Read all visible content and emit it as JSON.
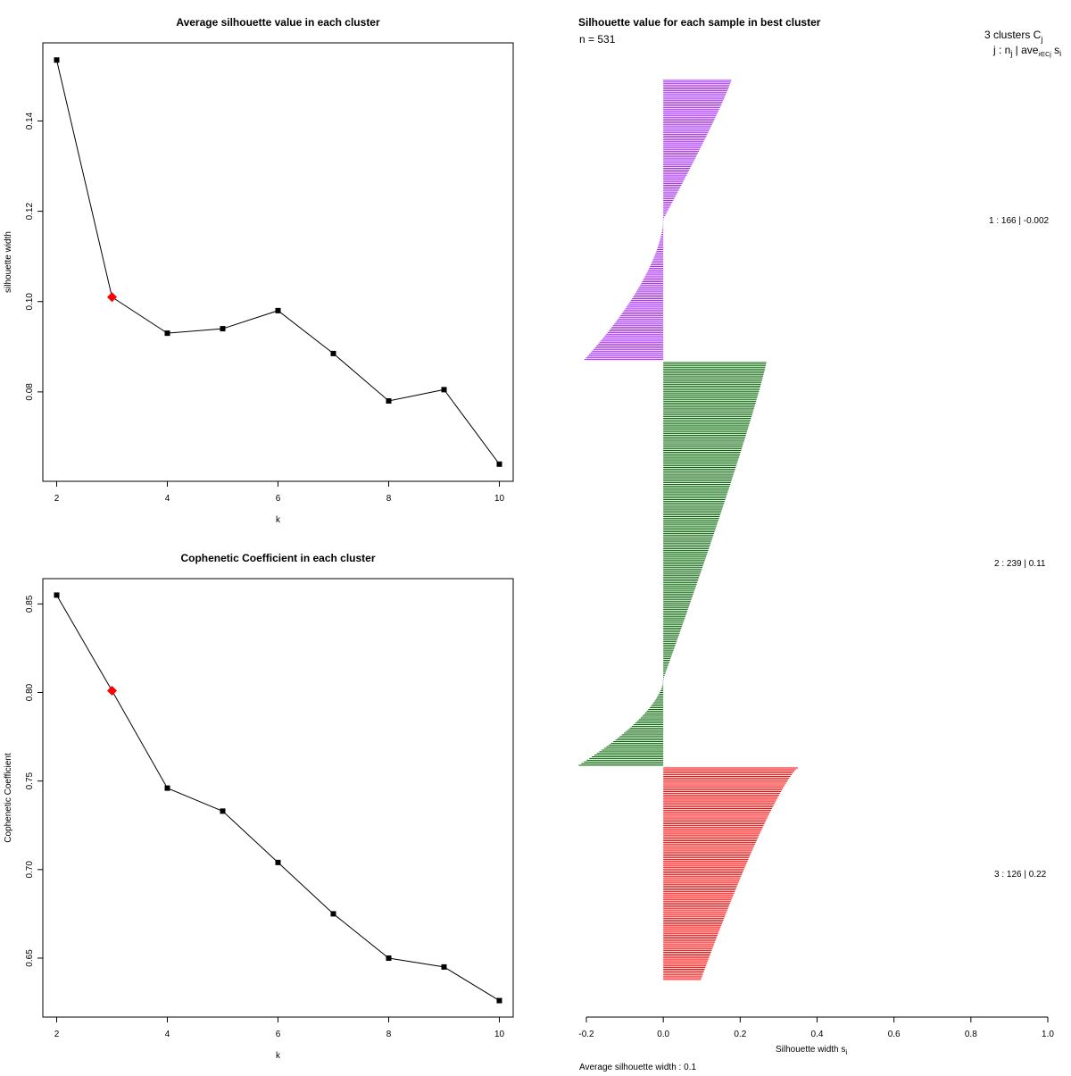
{
  "chart_data": [
    {
      "type": "line",
      "title": "Average silhouette value in each cluster",
      "xlabel": "k",
      "ylabel": "silhouette width",
      "x": [
        2,
        3,
        4,
        5,
        6,
        7,
        8,
        9,
        10
      ],
      "values": [
        0.1535,
        0.101,
        0.093,
        0.094,
        0.098,
        0.0885,
        0.078,
        0.0805,
        0.064
      ],
      "highlight": {
        "x": 3,
        "value": 0.101,
        "color": "#ff0000"
      },
      "xlim": [
        1.75,
        10.25
      ],
      "ylim": [
        0.0602,
        0.1573
      ],
      "xticks": [
        2,
        4,
        6,
        8,
        10
      ],
      "xtick_labels": [
        "2",
        "4",
        "6",
        "8",
        "10"
      ],
      "yticks": [
        0.08,
        0.1,
        0.12,
        0.14
      ],
      "ytick_labels": [
        "0.08",
        "0.10",
        "0.12",
        "0.14"
      ],
      "color": "#000000"
    },
    {
      "type": "line",
      "title": "Cophenetic Coefficient in each cluster",
      "xlabel": "k",
      "ylabel": "Cophenetic Coefficient",
      "x": [
        2,
        3,
        4,
        5,
        6,
        7,
        8,
        9,
        10
      ],
      "values": [
        0.855,
        0.801,
        0.746,
        0.733,
        0.704,
        0.675,
        0.65,
        0.645,
        0.626
      ],
      "highlight": {
        "x": 3,
        "value": 0.801,
        "color": "#ff0000"
      },
      "xlim": [
        1.75,
        10.25
      ],
      "ylim": [
        0.6167,
        0.8643
      ],
      "xticks": [
        2,
        4,
        6,
        8,
        10
      ],
      "xtick_labels": [
        "2",
        "4",
        "6",
        "8",
        "10"
      ],
      "yticks": [
        0.65,
        0.7,
        0.75,
        0.8,
        0.85
      ],
      "ytick_labels": [
        "0.65",
        "0.70",
        "0.75",
        "0.80",
        "0.85"
      ],
      "color": "#000000"
    },
    {
      "type": "bar",
      "orientation": "horizontal",
      "title": "Silhouette value for each sample in best cluster",
      "n_label": "n = 531",
      "xlabel": "Silhouette width s",
      "xlabel_sub": "i",
      "xlim": [
        -0.2,
        1.0
      ],
      "xticks": [
        -0.2,
        0.0,
        0.2,
        0.4,
        0.6,
        0.8,
        1.0
      ],
      "xtick_labels": [
        "-0.2",
        "0.0",
        "0.2",
        "0.4",
        "0.6",
        "0.8",
        "1.0"
      ],
      "legend_header": {
        "line1": "3  clusters  C",
        "line1_sub": "j",
        "line2_prefix": "j :  n",
        "line2_mid": " | ave",
        "line2_sub": "i∈Cj",
        "line2_suffix": " s",
        "line2_end_sub": "i"
      },
      "footer": "Average silhouette width :  0.1",
      "clusters": [
        {
          "id": 1,
          "n": 166,
          "avg": -0.002,
          "label": "1 :   166  |  -0.002",
          "color": "#a020f0",
          "max": 0.177,
          "min": -0.205,
          "n_pos": 83
        },
        {
          "id": 2,
          "n": 239,
          "avg": 0.11,
          "label": "2 :   239  |  0.11",
          "color": "#006400",
          "max": 0.268,
          "min": -0.22,
          "n_pos": 188
        },
        {
          "id": 3,
          "n": 126,
          "avg": 0.22,
          "label": "3 :   126  |  0.22",
          "color": "#ff0000",
          "max": 0.35,
          "min": 0.098,
          "n_pos": 126
        }
      ]
    }
  ]
}
